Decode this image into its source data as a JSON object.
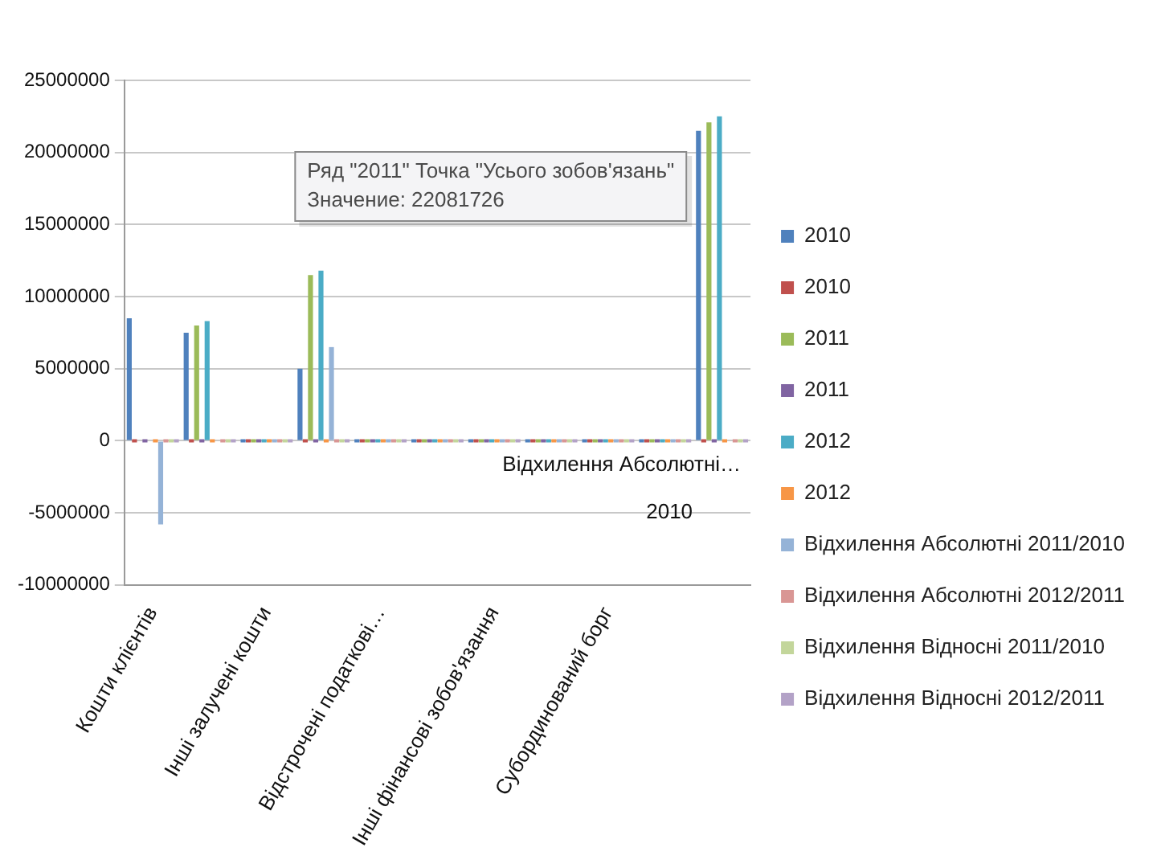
{
  "chart_data": {
    "type": "bar",
    "categories": [
      "Кошти клієнтів",
      null,
      "Інші залучені кошти",
      null,
      "Відстрочені податкові…",
      null,
      "Інші фінансові зобов'язання",
      null,
      "Субординований борг",
      null,
      null
    ],
    "series": [
      {
        "name": "2010",
        "color": "#4f81bd",
        "values": [
          8500000,
          7500000,
          0,
          5000000,
          0,
          0,
          0,
          0,
          0,
          0,
          21500000
        ]
      },
      {
        "name": "2010",
        "color": "#c0504d",
        "values": [
          0,
          0,
          0,
          0,
          0,
          0,
          0,
          0,
          0,
          0,
          0
        ]
      },
      {
        "name": "2011",
        "color": "#9bbb59",
        "values": [
          null,
          8000000,
          0,
          11500000,
          0,
          0,
          0,
          0,
          0,
          0,
          22081726
        ]
      },
      {
        "name": "2011",
        "color": "#8064a2",
        "values": [
          0,
          0,
          0,
          0,
          0,
          0,
          0,
          0,
          0,
          0,
          0
        ]
      },
      {
        "name": "2012",
        "color": "#4bacc6",
        "values": [
          null,
          8300000,
          0,
          11800000,
          0,
          0,
          0,
          0,
          0,
          0,
          22500000
        ]
      },
      {
        "name": "2012",
        "color": "#f79646",
        "values": [
          0,
          0,
          0,
          0,
          0,
          0,
          0,
          0,
          0,
          0,
          0
        ]
      },
      {
        "name": "Відхилення Абсолютні 2011/2010",
        "color": "#95b3d7",
        "values": [
          -5800000,
          null,
          0,
          6500000,
          0,
          0,
          0,
          0,
          0,
          0,
          null
        ]
      },
      {
        "name": "Відхилення Абсолютні 2012/2011",
        "color": "#d99694",
        "values": [
          0,
          0,
          0,
          0,
          0,
          0,
          0,
          0,
          0,
          0,
          0
        ]
      },
      {
        "name": "Відхилення Відносні 2011/2010",
        "color": "#c3d69b",
        "values": [
          0,
          0,
          0,
          0,
          0,
          0,
          0,
          0,
          0,
          0,
          0
        ]
      },
      {
        "name": "Відхилення Відносні 2012/2011",
        "color": "#b3a2c7",
        "values": [
          0,
          0,
          0,
          0,
          0,
          0,
          0,
          0,
          0,
          0,
          0
        ]
      }
    ],
    "ylim": [
      -10000000,
      25000000
    ],
    "yticks": [
      -10000000,
      -5000000,
      0,
      5000000,
      10000000,
      15000000,
      20000000,
      25000000
    ],
    "grid": "y",
    "legend": "right",
    "annotations": [
      "Ряд \"2011\" Точка \"Усього зобов'язань\"\nЗначение: 22081726",
      "Відхилення Абсолютні…",
      "2010"
    ]
  }
}
